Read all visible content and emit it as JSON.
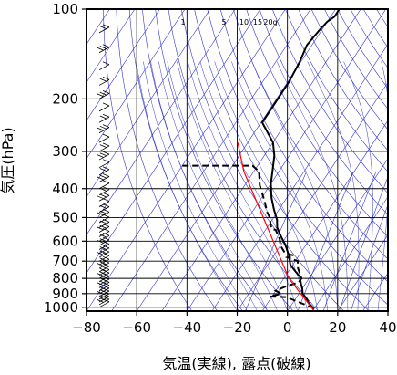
{
  "chart_data": {
    "type": "line",
    "subtype": "skew-T log-p thermodynamic diagram",
    "title": "",
    "xlabel": "気温(実線), 露点(破線)",
    "ylabel": "気圧(hPa)",
    "x_axis": {
      "label": "気温(実線), 露点(破線)",
      "unit": "℃",
      "range": [
        -80,
        40
      ],
      "ticks": [
        -80,
        -60,
        -40,
        -20,
        0,
        20,
        40
      ],
      "tick_labels": [
        "−80",
        "−60",
        "−40",
        "−20",
        "0",
        "20",
        "40"
      ]
    },
    "y_axis": {
      "label": "気圧(hPa)",
      "scale": "log",
      "range": [
        1030,
        100
      ],
      "reversed": true,
      "ticks": [
        100,
        200,
        300,
        400,
        500,
        600,
        700,
        800,
        900,
        1000
      ],
      "tick_labels": [
        "100",
        "200",
        "300",
        "400",
        "500",
        "600",
        "700",
        "800",
        "900",
        "1000"
      ]
    },
    "grid": true,
    "mixing_ratio_labels": [
      "1",
      "5",
      "10",
      "15",
      "20g"
    ],
    "colors": {
      "temperature": "#000000",
      "dewpoint": "#000000",
      "parcel": "#ff0000",
      "reference_lines": "#3333cc",
      "grid": "#000000"
    },
    "series": [
      {
        "style": "solid",
        "points": [
          [
            -58.5,
            100
          ],
          [
            -58.5,
            106
          ],
          [
            -60,
            110
          ],
          [
            -61,
            118
          ],
          [
            -62,
            132
          ],
          [
            -60.5,
            150
          ],
          [
            -59.5,
            175
          ],
          [
            -59.5,
            205
          ],
          [
            -59.5,
            240
          ],
          [
            -57,
            250
          ],
          [
            -50,
            280
          ],
          [
            -46,
            310
          ],
          [
            -43,
            345
          ],
          [
            -40,
            385
          ],
          [
            -36,
            430
          ],
          [
            -32,
            470
          ],
          [
            -28,
            510
          ],
          [
            -26,
            540
          ],
          [
            -22,
            580
          ],
          [
            -18,
            620
          ],
          [
            -14,
            670
          ],
          [
            -11,
            720
          ],
          [
            -7,
            760
          ],
          [
            -4,
            790
          ],
          [
            -2,
            830
          ],
          [
            0,
            865
          ],
          [
            1.5,
            900
          ],
          [
            4,
            930
          ],
          [
            6.5,
            970
          ],
          [
            9,
            1000
          ],
          [
            10,
            1020
          ]
        ]
      },
      {
        "style": "dashed",
        "points": [
          [
            -80,
            335
          ],
          [
            -62,
            335
          ],
          [
            -52,
            335
          ],
          [
            -48,
            350
          ],
          [
            -44,
            390
          ],
          [
            -38,
            440
          ],
          [
            -34,
            480
          ],
          [
            -31,
            505
          ],
          [
            -30,
            520
          ],
          [
            -28,
            545
          ],
          [
            -26,
            550
          ],
          [
            -22,
            590
          ],
          [
            -20,
            620
          ],
          [
            -16,
            660
          ],
          [
            -12,
            670
          ],
          [
            -14,
            680
          ],
          [
            -9,
            700
          ],
          [
            -7,
            740
          ],
          [
            -3,
            800
          ],
          [
            -3,
            825
          ],
          [
            -7,
            850
          ],
          [
            -10,
            880
          ],
          [
            -7,
            900
          ],
          [
            -11,
            920
          ],
          [
            -4,
            925
          ],
          [
            2,
            960
          ],
          [
            7,
            990
          ],
          [
            9,
            1000
          ],
          [
            10,
            1020
          ]
        ]
      },
      {
        "style": "solid",
        "points": [
          [
            10,
            1020
          ],
          [
            -8,
            800
          ],
          [
            -24,
            600
          ],
          [
            -40,
            450
          ],
          [
            -54,
            350
          ],
          [
            -64,
            280
          ]
        ]
      }
    ]
  }
}
